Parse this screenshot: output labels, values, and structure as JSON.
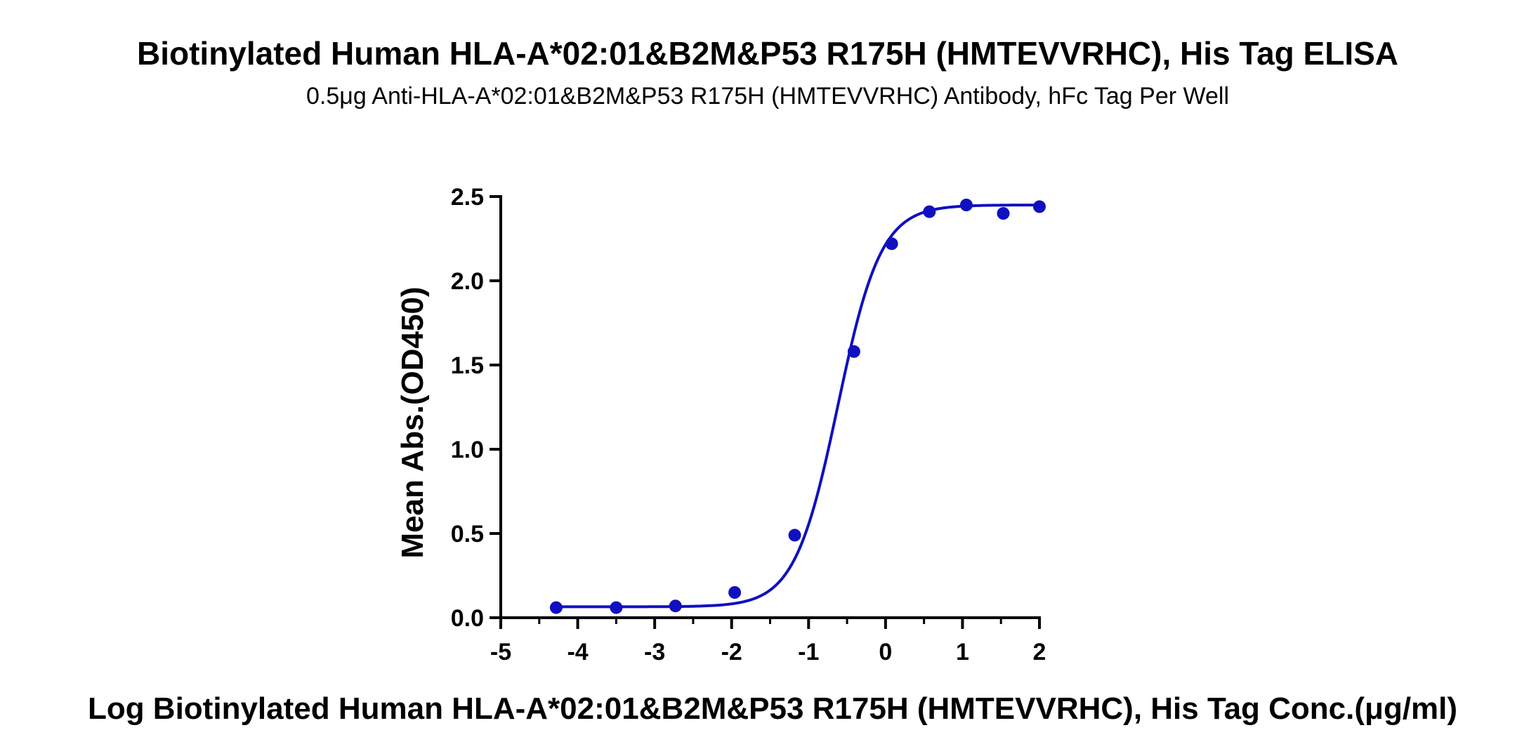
{
  "chart_data": {
    "type": "scatter",
    "title": "Biotinylated Human HLA-A*02:01&B2M&P53 R175H (HMTEVVRHC), His Tag ELISA",
    "subtitle": "0.5μg Anti-HLA-A*02:01&B2M&P53 R175H (HMTEVVRHC) Antibody, hFc Tag Per Well",
    "xlabel": "Log Biotinylated Human HLA-A*02:01&B2M&P53 R175H (HMTEVVRHC), His Tag Conc.(μg/ml)",
    "ylabel": "Mean Abs.(OD450)",
    "xlim": [
      -5,
      2
    ],
    "ylim": [
      0,
      2.5
    ],
    "xticks": [
      -5,
      -4,
      -3,
      -2,
      -1,
      0,
      1,
      2
    ],
    "xtick_labels": [
      "-5",
      "-4",
      "-3",
      "-2",
      "-1",
      "0",
      "1",
      "2"
    ],
    "yticks": [
      0,
      0.5,
      1,
      1.5,
      2,
      2.5
    ],
    "ytick_labels": [
      "0.0",
      "0.5",
      "1.0",
      "1.5",
      "2.0",
      "2.5"
    ],
    "grid": false,
    "color": "#1010c0",
    "x": [
      -4.28,
      -3.5,
      -2.73,
      -1.96,
      -1.18,
      -0.41,
      0.08,
      0.57,
      1.05,
      1.53,
      2.0
    ],
    "y": [
      0.06,
      0.06,
      0.07,
      0.15,
      0.49,
      1.58,
      2.22,
      2.41,
      2.45,
      2.4,
      2.44
    ],
    "fit": {
      "model": "4PL",
      "bottom": 0.065,
      "top": 2.45,
      "logEC50": -0.62,
      "hill": 1.55,
      "x_range": [
        -4.28,
        2.0
      ]
    }
  }
}
